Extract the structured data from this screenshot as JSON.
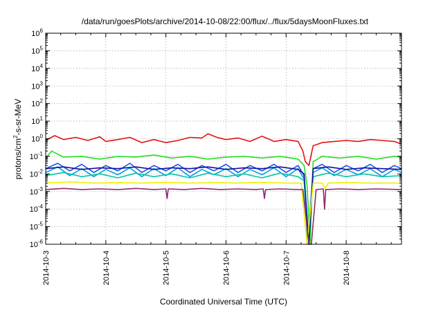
{
  "chart_data": {
    "type": "line",
    "title": "/data/run/goesPlots/archive/2014-10-08/22:00/flux/../flux/5daysMoonFluxes.txt",
    "xlabel": "Coordinated Universal Time (UTC)",
    "ylabel": {
      "base": "protons/cm",
      "sup": "2",
      "rest": "-s-sr-MeV"
    },
    "x_ticks": [
      "2014-10-3",
      "2014-10-4",
      "2014-10-5",
      "2014-10-6",
      "2014-10-7",
      "2014-10-8"
    ],
    "xlim_days": [
      3.0,
      8.92
    ],
    "y_scale": "log",
    "ylim": [
      1e-06,
      1000000.0
    ],
    "y_tick_exponents": [
      -6,
      -5,
      -4,
      -3,
      -2,
      -1,
      0,
      1,
      2,
      3,
      4,
      5,
      6
    ],
    "grid": true,
    "series": [
      {
        "color": "#e41010",
        "x": [
          3.0,
          3.15,
          3.3,
          3.5,
          3.7,
          3.9,
          4.0,
          4.2,
          4.4,
          4.6,
          4.8,
          5.0,
          5.2,
          5.4,
          5.6,
          5.7,
          5.85,
          6.0,
          6.2,
          6.4,
          6.6,
          6.8,
          7.0,
          7.2,
          7.28,
          7.32,
          7.38,
          7.45,
          7.6,
          7.8,
          8.0,
          8.2,
          8.4,
          8.6,
          8.8,
          8.92
        ],
        "values": [
          0.8,
          1.5,
          0.9,
          1.2,
          0.8,
          1.3,
          0.7,
          0.9,
          1.2,
          0.6,
          0.9,
          0.6,
          0.8,
          1.2,
          1.1,
          1.9,
          1.2,
          0.9,
          1.1,
          0.7,
          1.4,
          0.7,
          0.9,
          0.7,
          0.2,
          0.05,
          0.03,
          0.4,
          0.6,
          0.7,
          0.8,
          0.7,
          0.9,
          0.8,
          0.7,
          0.5
        ]
      },
      {
        "color": "#22e022",
        "x": [
          3.0,
          3.1,
          3.3,
          3.6,
          3.9,
          4.2,
          4.5,
          4.8,
          5.1,
          5.4,
          5.7,
          6.0,
          6.3,
          6.6,
          6.9,
          7.2,
          7.3,
          7.35,
          7.4,
          7.45,
          7.6,
          7.9,
          8.2,
          8.5,
          8.8,
          8.92
        ],
        "values": [
          0.08,
          0.2,
          0.09,
          0.1,
          0.07,
          0.1,
          0.09,
          0.12,
          0.08,
          0.1,
          0.07,
          0.09,
          0.1,
          0.08,
          0.1,
          0.07,
          0.03,
          0.002,
          1e-06,
          0.05,
          0.1,
          0.08,
          0.1,
          0.07,
          0.1,
          0.09
        ]
      },
      {
        "color": "#2050e0",
        "x": [
          3.0,
          3.2,
          3.4,
          3.6,
          3.8,
          4.0,
          4.2,
          4.4,
          4.6,
          4.8,
          5.0,
          5.2,
          5.4,
          5.6,
          5.8,
          6.0,
          6.2,
          6.4,
          6.6,
          6.8,
          7.0,
          7.2,
          7.3,
          7.36,
          7.45,
          7.6,
          7.8,
          8.0,
          8.2,
          8.4,
          8.6,
          8.8,
          8.92
        ],
        "values": [
          0.02,
          0.04,
          0.015,
          0.035,
          0.012,
          0.03,
          0.015,
          0.04,
          0.012,
          0.03,
          0.015,
          0.035,
          0.012,
          0.03,
          0.015,
          0.035,
          0.012,
          0.03,
          0.015,
          0.035,
          0.012,
          0.03,
          0.008,
          1e-06,
          0.02,
          0.035,
          0.012,
          0.03,
          0.015,
          0.035,
          0.012,
          0.03,
          0.02
        ]
      },
      {
        "color": "#00a0e0",
        "x": [
          3.0,
          3.2,
          3.4,
          3.6,
          3.8,
          4.0,
          4.2,
          4.4,
          4.6,
          4.8,
          5.0,
          5.2,
          5.4,
          5.6,
          5.8,
          6.0,
          6.2,
          6.4,
          6.6,
          6.8,
          7.0,
          7.2,
          7.3,
          7.36,
          7.45,
          7.6,
          7.8,
          8.0,
          8.2,
          8.4,
          8.6,
          8.8,
          8.92
        ],
        "values": [
          0.012,
          0.025,
          0.008,
          0.02,
          0.007,
          0.018,
          0.009,
          0.022,
          0.007,
          0.02,
          0.008,
          0.022,
          0.007,
          0.018,
          0.009,
          0.02,
          0.007,
          0.018,
          0.009,
          0.022,
          0.007,
          0.02,
          0.005,
          1e-06,
          0.012,
          0.022,
          0.008,
          0.018,
          0.009,
          0.02,
          0.007,
          0.018,
          0.012
        ]
      },
      {
        "color": "#00c8a0",
        "x": [
          3.0,
          3.3,
          3.6,
          3.9,
          4.2,
          4.5,
          4.8,
          5.1,
          5.4,
          5.7,
          6.0,
          6.3,
          6.6,
          6.9,
          7.2,
          7.3,
          7.37,
          7.45,
          7.7,
          8.0,
          8.3,
          8.6,
          8.92
        ],
        "values": [
          0.008,
          0.012,
          0.007,
          0.01,
          0.006,
          0.011,
          0.007,
          0.01,
          0.006,
          0.011,
          0.007,
          0.01,
          0.006,
          0.011,
          0.007,
          0.004,
          1e-06,
          0.007,
          0.011,
          0.007,
          0.01,
          0.007,
          0.008
        ]
      },
      {
        "color": "#1010a0",
        "x": [
          3.0,
          3.3,
          3.6,
          3.9,
          4.2,
          4.5,
          4.8,
          5.1,
          5.4,
          5.7,
          6.0,
          6.3,
          6.6,
          6.9,
          7.2,
          7.3,
          7.38,
          7.45,
          7.7,
          8.0,
          8.3,
          8.6,
          8.92
        ],
        "values": [
          0.02,
          0.025,
          0.018,
          0.022,
          0.02,
          0.025,
          0.018,
          0.022,
          0.02,
          0.025,
          0.018,
          0.022,
          0.02,
          0.025,
          0.018,
          0.01,
          1e-06,
          0.02,
          0.025,
          0.018,
          0.022,
          0.02,
          0.018
        ]
      },
      {
        "color": "#f0f000",
        "x": [
          3.0,
          3.4,
          3.8,
          4.2,
          4.6,
          5.0,
          5.4,
          5.8,
          6.2,
          6.6,
          7.0,
          7.25,
          7.35,
          7.45,
          7.6,
          7.65,
          7.7,
          8.0,
          8.4,
          8.92
        ],
        "values": [
          0.003,
          0.0035,
          0.003,
          0.0032,
          0.003,
          0.0033,
          0.003,
          0.0032,
          0.003,
          0.0033,
          0.003,
          0.003,
          1e-06,
          0.003,
          0.003,
          0.0015,
          0.003,
          0.0032,
          0.003,
          0.003
        ]
      },
      {
        "color": "#8b2a6a",
        "x": [
          3.0,
          3.3,
          3.6,
          3.9,
          4.2,
          4.5,
          4.8,
          5.0,
          5.02,
          5.04,
          5.3,
          5.6,
          5.9,
          6.2,
          6.5,
          6.62,
          6.64,
          6.66,
          6.9,
          7.2,
          7.28,
          7.38,
          7.42,
          7.5,
          7.62,
          7.64,
          7.66,
          7.9,
          8.2,
          8.5,
          8.92
        ],
        "values": [
          0.0013,
          0.0015,
          0.0013,
          0.0014,
          0.0013,
          0.0015,
          0.0013,
          0.0014,
          0.0004,
          0.0014,
          0.0013,
          0.0015,
          0.0013,
          0.0014,
          0.0013,
          0.0014,
          0.0004,
          0.0013,
          0.0014,
          0.0013,
          0.0013,
          1e-06,
          1e-06,
          0.0013,
          0.0014,
          0.0001,
          0.0013,
          0.0014,
          0.0013,
          0.0014,
          0.0013
        ]
      }
    ]
  }
}
